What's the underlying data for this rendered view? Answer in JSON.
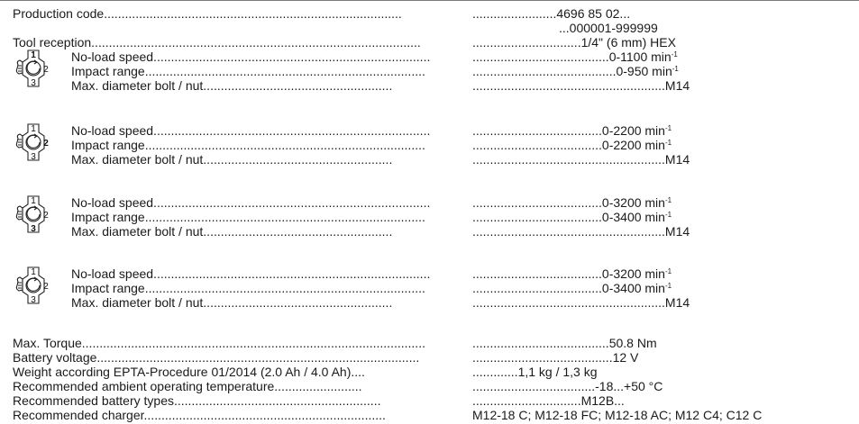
{
  "spec": {
    "production_code": {
      "label": "Production code",
      "dots": ".....................................................................................",
      "lead": "........................",
      "value": "4696 85 02...",
      "range": "...000001-999999"
    },
    "tool_reception": {
      "label": "Tool reception",
      "dots": "..............................................................................................",
      "lead": "...............................",
      "value": "1/4\" (6 mm) HEX"
    }
  },
  "modes": [
    {
      "icon": "impact-mode-dial-icon-1",
      "rows": [
        {
          "label": "No-load speed",
          "dots": "...............................................................................",
          "lead": ".......................................",
          "value": "0-1100 min",
          "sup": "-1"
        },
        {
          "label": "Impact range",
          "dots": "................................................................................",
          "lead": ".........................................",
          "value": "0-950 min",
          "sup": "-1"
        },
        {
          "label": "Max. diameter bolt / nut",
          "dots": "......................................................",
          "lead": ".......................................................",
          "value": "M14",
          "sup": ""
        }
      ]
    },
    {
      "icon": "impact-mode-dial-icon-2",
      "rows": [
        {
          "label": "No-load speed",
          "dots": "...............................................................................",
          "lead": ".....................................",
          "value": "0-2200 min",
          "sup": "-1"
        },
        {
          "label": "Impact range",
          "dots": "................................................................................",
          "lead": ".....................................",
          "value": "0-2200 min",
          "sup": "-1"
        },
        {
          "label": "Max. diameter bolt / nut",
          "dots": "......................................................",
          "lead": ".......................................................",
          "value": "M14",
          "sup": ""
        }
      ]
    },
    {
      "icon": "impact-mode-dial-icon-3",
      "rows": [
        {
          "label": "No-load speed",
          "dots": "...............................................................................",
          "lead": ".....................................",
          "value": "0-3200 min",
          "sup": "-1"
        },
        {
          "label": "Impact range",
          "dots": "................................................................................",
          "lead": ".....................................",
          "value": "0-3400 min",
          "sup": "-1"
        },
        {
          "label": "Max. diameter bolt / nut",
          "dots": "......................................................",
          "lead": ".......................................................",
          "value": "M14",
          "sup": ""
        }
      ]
    },
    {
      "icon": "impact-mode-dial-icon-4",
      "rows": [
        {
          "label": "No-load speed",
          "dots": "...............................................................................",
          "lead": ".....................................",
          "value": "0-3200 min",
          "sup": "-1"
        },
        {
          "label": "Impact range",
          "dots": "................................................................................",
          "lead": ".....................................",
          "value": "0-3400 min",
          "sup": "-1"
        },
        {
          "label": "Max. diameter bolt / nut",
          "dots": "......................................................",
          "lead": ".......................................................",
          "value": "M14",
          "sup": ""
        }
      ]
    }
  ],
  "bottom": [
    {
      "label": "Max. Torque",
      "dots": "..................................................................................................",
      "lead": ".......................................",
      "value": "50.8 Nm"
    },
    {
      "label": "Battery voltage",
      "dots": "............................................................................................",
      "lead": "........................................",
      "value": "12 V"
    },
    {
      "label": "Weight according EPTA-Procedure 01/2014 (2.0 Ah / 4.0 Ah)",
      "dots": "....",
      "lead": ".............",
      "value": "1,1 kg / 1,3 kg"
    },
    {
      "label": "Recommended ambient operating temperature",
      "dots": ".........................",
      "lead": "...................................",
      "value": "-18...+50 °C"
    },
    {
      "label": "Recommended battery types",
      "dots": "...........................................................",
      "lead": "...............................",
      "value": "M12B..."
    },
    {
      "label": "Recommended charger",
      "dots": ".....................................................................",
      "lead": "",
      "value": "M12-18 C; M12-18 FC; M12-18 AC; M12 C4; C12 C"
    }
  ]
}
